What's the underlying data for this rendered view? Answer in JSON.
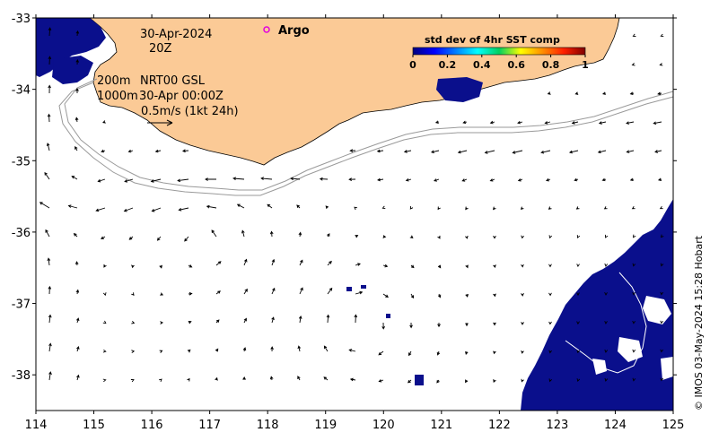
{
  "map": {
    "date": "30-Apr-2024",
    "time": "20Z",
    "isobaths": "200m",
    "depth_deep": "1000m",
    "product": "NRT00 GSL",
    "analysis_time": "30-Apr 00:00Z",
    "scale_label": "0.5m/s (1kt 24h)",
    "argo_label": "Argo",
    "credit": "© IMOS 03-May-2024 15:28 Hobart",
    "colors": {
      "land": "#fbca96",
      "ocean": "#ffffff",
      "sst_low": "#0a0f8c",
      "argo": "#e000e0"
    }
  },
  "colorbar": {
    "title": "std dev of 4hr SST comp",
    "ticks": [
      "0",
      "0.2",
      "0.4",
      "0.6",
      "0.8",
      "1"
    ],
    "range": [
      0,
      1
    ],
    "colormap": "jet"
  },
  "axes": {
    "x_ticks": [
      "114",
      "115",
      "116",
      "117",
      "118",
      "119",
      "120",
      "121",
      "122",
      "123",
      "124",
      "125"
    ],
    "y_ticks": [
      "-33",
      "-34",
      "-35",
      "-36",
      "-37",
      "-38"
    ],
    "xlim": [
      114,
      125
    ],
    "ylim": [
      -38.5,
      -33
    ]
  }
}
